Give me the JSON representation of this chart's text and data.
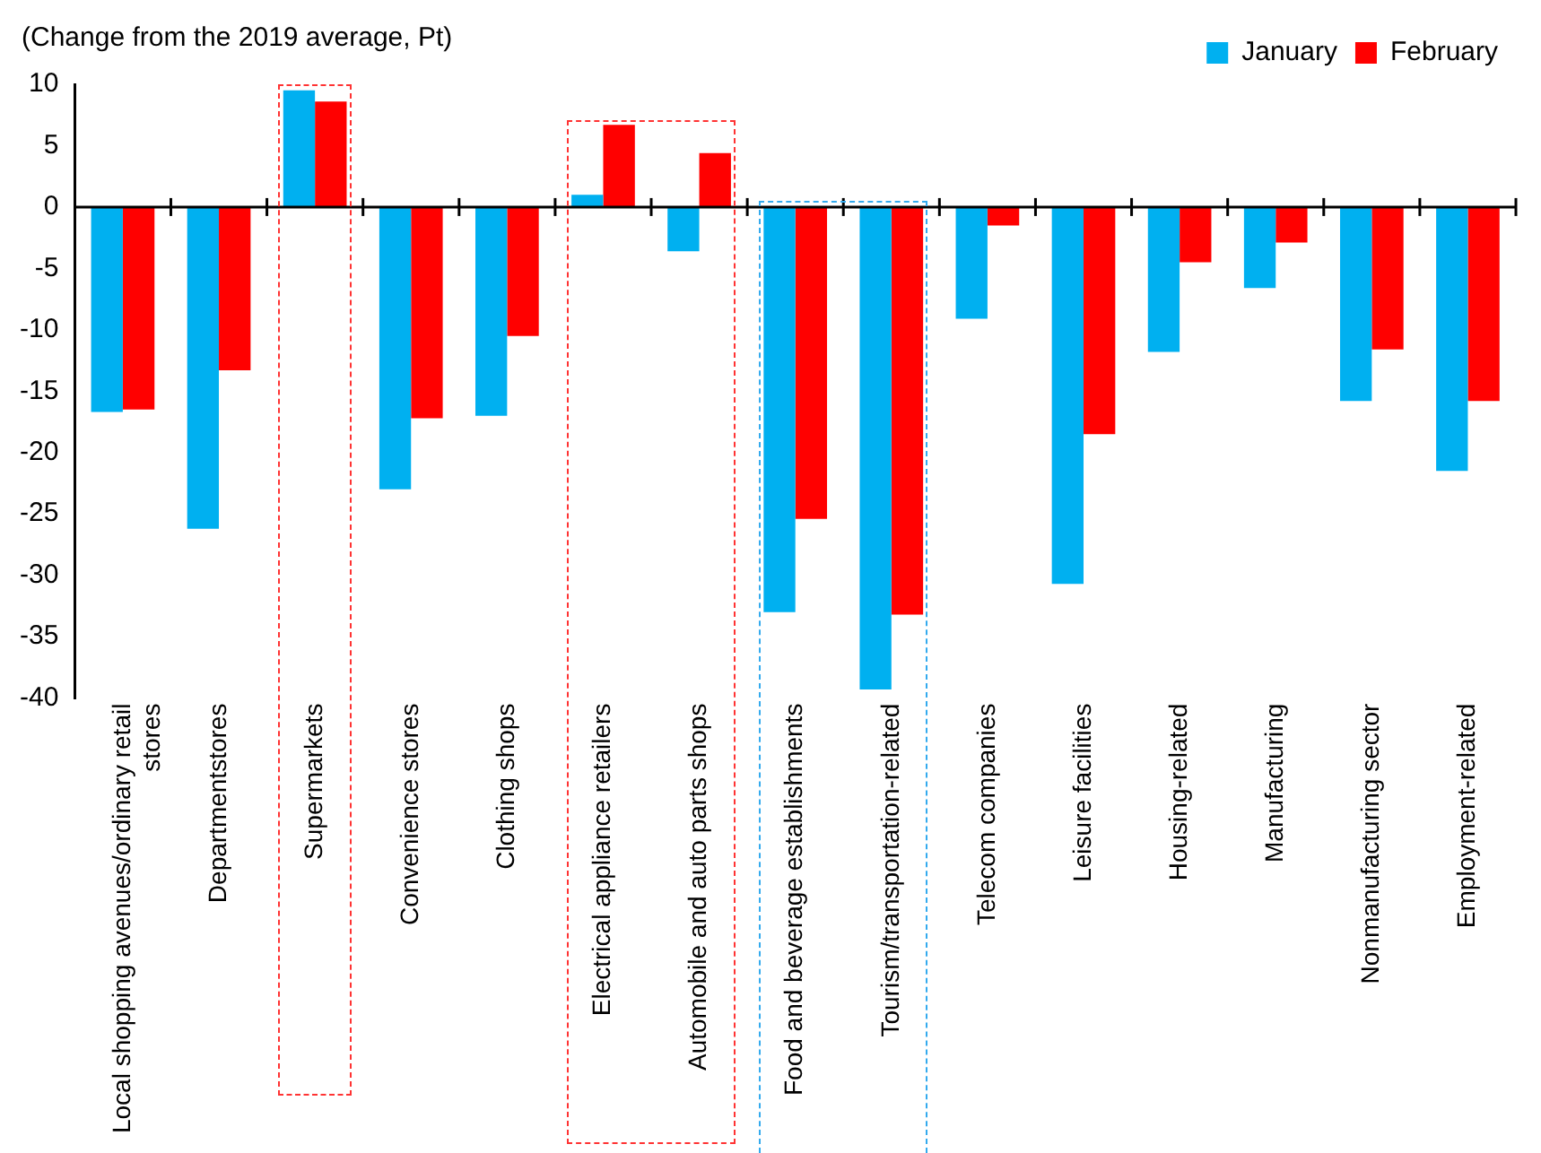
{
  "chart_data": {
    "type": "bar",
    "ylabel": "(Change from the 2019 average, Pt)",
    "categories": [
      "Local shopping avenues/ordinary retail stores",
      "Departmentstores",
      "Supermarkets",
      "Convenience stores",
      "Clothing shops",
      "Electrical appliance retailers",
      "Automobile and auto parts shops",
      "Food and beverage establishments",
      "Tourism/transportation-related",
      "Telecom companies",
      "Leisure facilities",
      "Housing-related",
      "Manufacturing",
      "Nonmanufacturing sector",
      "Employment-related"
    ],
    "series": [
      {
        "name": "January",
        "color": "#00b0f0",
        "values": [
          -16.7,
          -26.2,
          9.5,
          -23,
          -17,
          1,
          -3.6,
          -33,
          -39.3,
          -9.1,
          -30.7,
          -11.8,
          -6.6,
          -15.8,
          -21.5
        ]
      },
      {
        "name": "February",
        "color": "#ff0000",
        "values": [
          -16.5,
          -13.3,
          8.6,
          -17.2,
          -10.5,
          6.7,
          4.4,
          -25.4,
          -33.2,
          -1.5,
          -18.5,
          -4.5,
          -2.9,
          -11.6,
          -15.8
        ]
      }
    ],
    "ylim": [
      -40,
      10
    ],
    "yticks": [
      -40,
      -35,
      -30,
      -25,
      -20,
      -15,
      -10,
      -5,
      0,
      5,
      10
    ],
    "legend": "top right"
  }
}
